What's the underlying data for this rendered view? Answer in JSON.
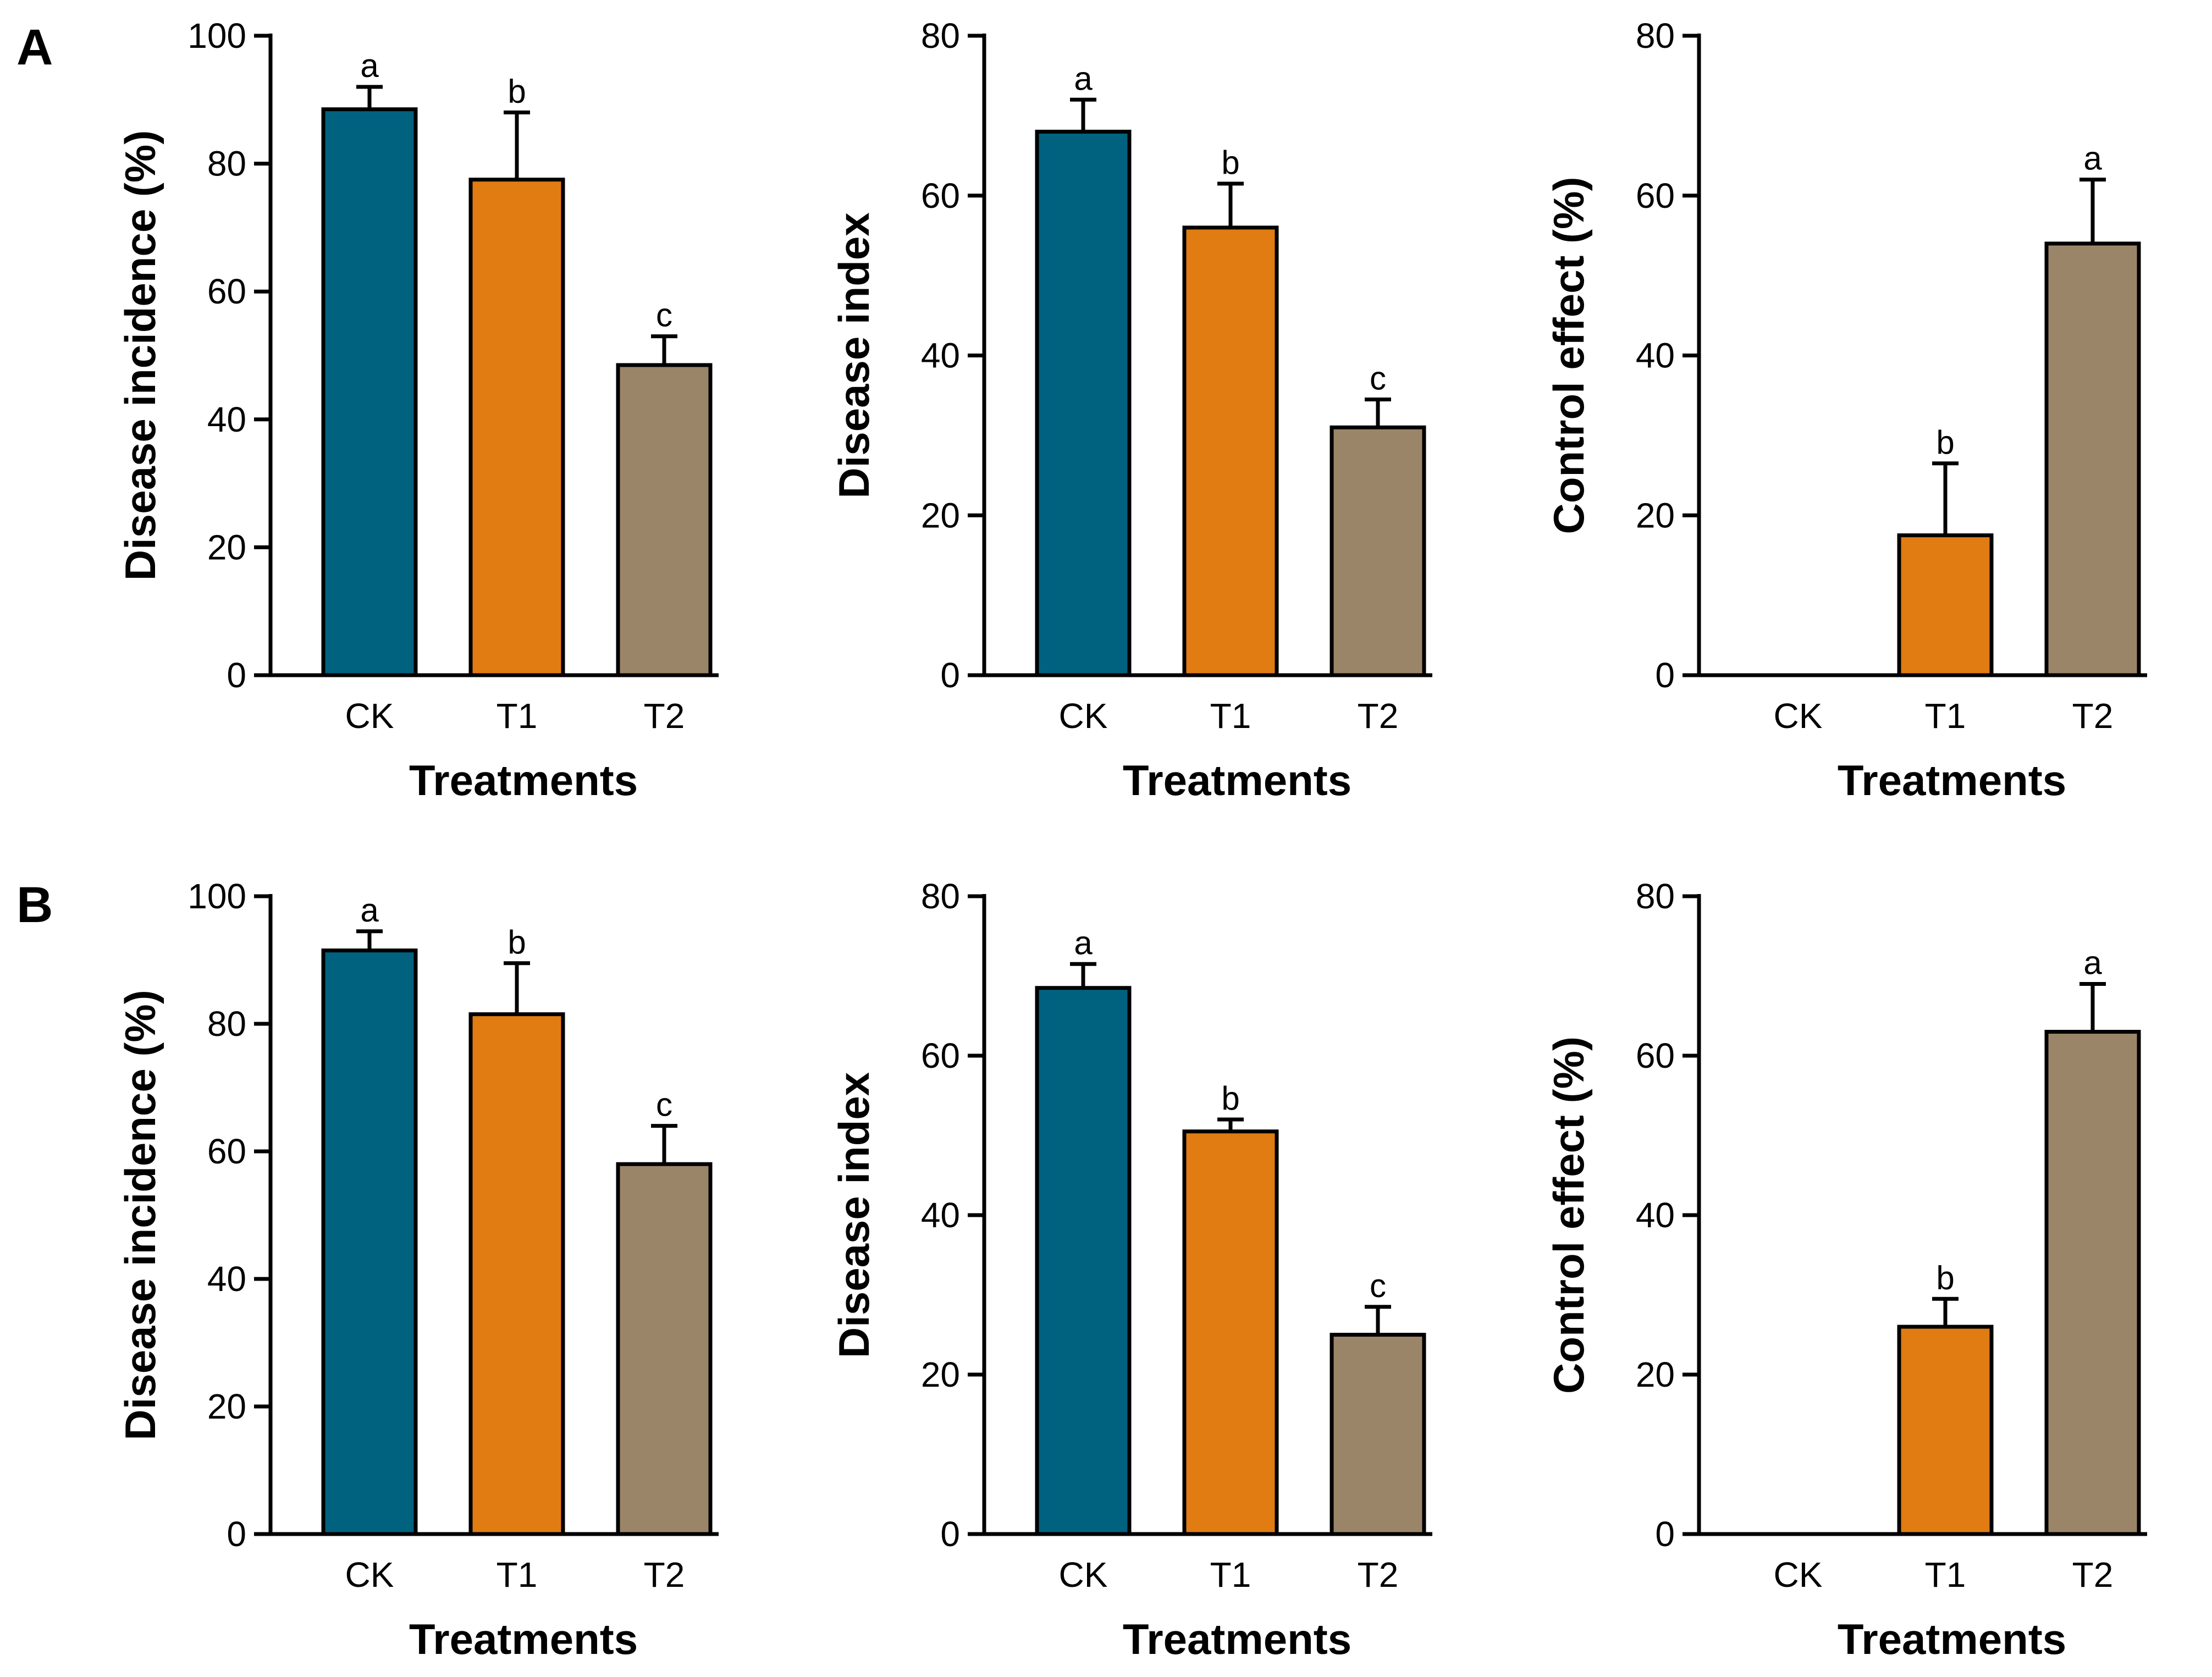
{
  "figure": {
    "panel_labels": [
      "A",
      "B"
    ]
  },
  "colors": {
    "ck": "#00627f",
    "t1": "#e07c12",
    "t2": "#9b8569",
    "axis": "#000000"
  },
  "chart_data": [
    {
      "type": "bar",
      "panel": "A",
      "title": "",
      "categories": [
        "CK",
        "T1",
        "T2"
      ],
      "values": [
        88.5,
        77.5,
        48.5
      ],
      "errors": [
        3.5,
        10.5,
        4.5
      ],
      "letters": [
        "a",
        "b",
        "c"
      ],
      "xlabel": "Treatments",
      "ylabel": "Disease incidence (%)",
      "ylim": [
        0,
        100
      ],
      "yticks": [
        0,
        20,
        40,
        60,
        80,
        100
      ]
    },
    {
      "type": "bar",
      "panel": "A",
      "title": "",
      "categories": [
        "CK",
        "T1",
        "T2"
      ],
      "values": [
        68,
        56,
        31
      ],
      "errors": [
        4,
        5.5,
        3.5
      ],
      "letters": [
        "a",
        "b",
        "c"
      ],
      "xlabel": "Treatments",
      "ylabel": "Disease index",
      "ylim": [
        0,
        80
      ],
      "yticks": [
        0,
        20,
        40,
        60,
        80
      ]
    },
    {
      "type": "bar",
      "panel": "A",
      "title": "",
      "categories": [
        "CK",
        "T1",
        "T2"
      ],
      "values": [
        0,
        17.5,
        54
      ],
      "errors": [
        0,
        9,
        8
      ],
      "letters": [
        "",
        "b",
        "a"
      ],
      "xlabel": "Treatments",
      "ylabel": "Control effect (%)",
      "ylim": [
        0,
        80
      ],
      "yticks": [
        0,
        20,
        40,
        60,
        80
      ]
    },
    {
      "type": "bar",
      "panel": "B",
      "title": "",
      "categories": [
        "CK",
        "T1",
        "T2"
      ],
      "values": [
        91.5,
        81.5,
        58
      ],
      "errors": [
        3,
        8,
        6
      ],
      "letters": [
        "a",
        "b",
        "c"
      ],
      "xlabel": "Treatments",
      "ylabel": "Disease incidence (%)",
      "ylim": [
        0,
        100
      ],
      "yticks": [
        0,
        20,
        40,
        60,
        80,
        100
      ]
    },
    {
      "type": "bar",
      "panel": "B",
      "title": "",
      "categories": [
        "CK",
        "T1",
        "T2"
      ],
      "values": [
        68.5,
        50.5,
        25
      ],
      "errors": [
        3,
        1.5,
        3.5
      ],
      "letters": [
        "a",
        "b",
        "c"
      ],
      "xlabel": "Treatments",
      "ylabel": "Disease index",
      "ylim": [
        0,
        80
      ],
      "yticks": [
        0,
        20,
        40,
        60,
        80
      ]
    },
    {
      "type": "bar",
      "panel": "B",
      "title": "",
      "categories": [
        "CK",
        "T1",
        "T2"
      ],
      "values": [
        0,
        26,
        63
      ],
      "errors": [
        0,
        3.5,
        6
      ],
      "letters": [
        "",
        "b",
        "a"
      ],
      "xlabel": "Treatments",
      "ylabel": "Control effect (%)",
      "ylim": [
        0,
        80
      ],
      "yticks": [
        0,
        20,
        40,
        60,
        80
      ]
    }
  ]
}
